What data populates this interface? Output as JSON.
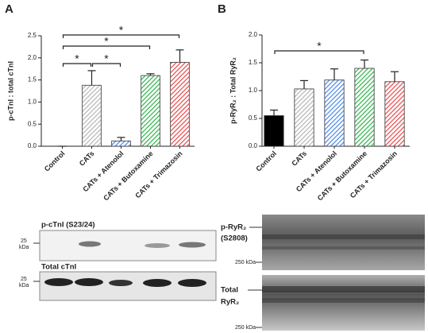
{
  "panels": [
    "A",
    "B"
  ],
  "chart_data": [
    {
      "type": "bar",
      "ylabel": "p-cTnI : total cTnI",
      "categories": [
        "Control",
        "CATs",
        "CATs + Atenolol",
        "CATs + Butoxamine",
        "CATs + Trimazosin"
      ],
      "values": [
        0,
        1.38,
        0.12,
        1.6,
        1.9
      ],
      "errors": [
        0,
        0.33,
        0.08,
        0.04,
        0.28
      ],
      "colors": [
        "#000000",
        "#b5b5b5",
        "#4a86e8",
        "#2db34a",
        "#e84848"
      ],
      "hatch": [
        false,
        true,
        true,
        true,
        true
      ],
      "ylim": [
        0,
        2.5
      ],
      "yticks": [
        {
          "value": 0,
          "label": "0.0"
        },
        0.5,
        {
          "value": 1,
          "label": "1.0"
        },
        1.5,
        {
          "value": 2,
          "label": "2.0"
        },
        2.5
      ],
      "annotations": [
        {
          "label": "*",
          "between": [
            "Control",
            "CATs"
          ]
        },
        {
          "label": "*",
          "between": [
            "CATs",
            "CATs + Atenolol"
          ]
        },
        {
          "label": "*",
          "between": [
            "Control",
            "CATs + Butoxamine"
          ]
        },
        {
          "label": "*",
          "between": [
            "Control",
            "CATs + Trimazosin"
          ]
        }
      ]
    },
    {
      "type": "bar",
      "ylabel": "p-RyR₂ : Total RyR₂",
      "categories": [
        "Control",
        "CATs",
        "CATs + Atenolol",
        "CATs + Butoxamine",
        "CATs + Trimazosin"
      ],
      "values": [
        0.55,
        1.03,
        1.19,
        1.4,
        1.16
      ],
      "errors": [
        0.1,
        0.15,
        0.2,
        0.15,
        0.18
      ],
      "colors": [
        "#000000",
        "#b5b5b5",
        "#4a86e8",
        "#2db34a",
        "#e84848"
      ],
      "hatch": [
        false,
        true,
        true,
        true,
        true
      ],
      "ylim": [
        0,
        2
      ],
      "yticks": [
        {
          "value": 0,
          "label": "0.0"
        },
        0.5,
        {
          "value": 1,
          "label": "1.0"
        },
        1.5,
        {
          "value": 2,
          "label": "2.0"
        }
      ],
      "annotations": [
        {
          "label": "*",
          "between": [
            "Control",
            "CATs + Butoxamine"
          ]
        }
      ]
    }
  ],
  "blots": {
    "A": {
      "top_label": "p-cTnI (S23/24)",
      "bottom_label": "Total cTnI",
      "marker": [
        "25",
        "kDa"
      ]
    },
    "B": {
      "top_label": [
        "p-RyR₂",
        "(S2808)"
      ],
      "bottom_label": [
        "Total",
        "RyR₂"
      ],
      "marker": "250 kDa"
    }
  }
}
